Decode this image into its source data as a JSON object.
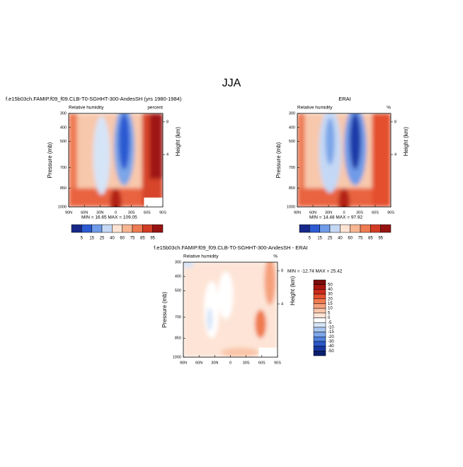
{
  "title": "JJA",
  "panels": [
    {
      "title": "f.e15b03ch.FAMIP.f09_f09.CLB-T0-SGHHT-300-AndesSH (yrs 1980-1984)",
      "subtitle": "Relative humidity",
      "units": "percent",
      "y_label": "Pressure (mb)",
      "y2_label": "Height (km)",
      "yticks": [
        "300",
        "400",
        "500",
        "700",
        "850",
        "1000"
      ],
      "y2ticks": [
        "8",
        "4"
      ],
      "xticks": [
        "90N",
        "60N",
        "30N",
        "0",
        "30S",
        "60S",
        "90S"
      ],
      "stats": "MIN = 16.65   MAX = 109.05",
      "colorbar": {
        "labels": [
          "5",
          "15",
          "25",
          "40",
          "60",
          "75",
          "85",
          "95"
        ],
        "colors": [
          "#17288a",
          "#2c5ad2",
          "#6f9be8",
          "#c4d8f5",
          "#fce3d3",
          "#f7b592",
          "#ee7b52",
          "#d23c24",
          "#961210"
        ]
      }
    },
    {
      "title": "ERAI",
      "subtitle": "Relative humidity",
      "units": "%",
      "y_label": "Pressure (mb)",
      "y2_label": "Height (km)",
      "yticks": [
        "300",
        "400",
        "500",
        "700",
        "850",
        "1000"
      ],
      "y2ticks": [
        "8",
        "4"
      ],
      "xticks": [
        "90N",
        "60N",
        "30N",
        "0",
        "30S",
        "60S",
        "90S"
      ],
      "stats": "MIN = 14.48   MAX = 97.92",
      "colorbar": {
        "labels": [
          "5",
          "15",
          "25",
          "40",
          "60",
          "75",
          "85",
          "95"
        ],
        "colors": [
          "#17288a",
          "#2c5ad2",
          "#6f9be8",
          "#c4d8f5",
          "#fce3d3",
          "#f7b592",
          "#ee7b52",
          "#d23c24",
          "#961210"
        ]
      }
    },
    {
      "title": "f.e15b03ch.FAMIP.f09_f09.CLB-T0-SGHHT-300-AndesSH - ERAI",
      "subtitle": "Relative humidity",
      "units": "%",
      "y_label": "Pressure (mb)",
      "y2_label": "Height (km)",
      "yticks": [
        "300",
        "400",
        "500",
        "700",
        "850",
        "1000"
      ],
      "y2ticks": [
        "8",
        "4"
      ],
      "xticks": [
        "90N",
        "60N",
        "30N",
        "0",
        "30S",
        "60S",
        "90S"
      ],
      "stats": "MIN = -12.74   MAX = 25.42",
      "colorbar": {
        "labels": [
          "50",
          "40",
          "30",
          "20",
          "15",
          "10",
          "5",
          "0",
          "-5",
          "-10",
          "-15",
          "-20",
          "-30",
          "-40",
          "-50"
        ],
        "colors": [
          "#7a0c0c",
          "#a8150f",
          "#cc2a1c",
          "#e4502f",
          "#f07a50",
          "#f6a07c",
          "#fac4a8",
          "#fde4d6",
          "#ffffff",
          "#d6e4f7",
          "#a9c6f0",
          "#7ca6e8",
          "#4f80dc",
          "#2b58c8",
          "#1737a0",
          "#0c1f6e"
        ]
      }
    }
  ]
}
